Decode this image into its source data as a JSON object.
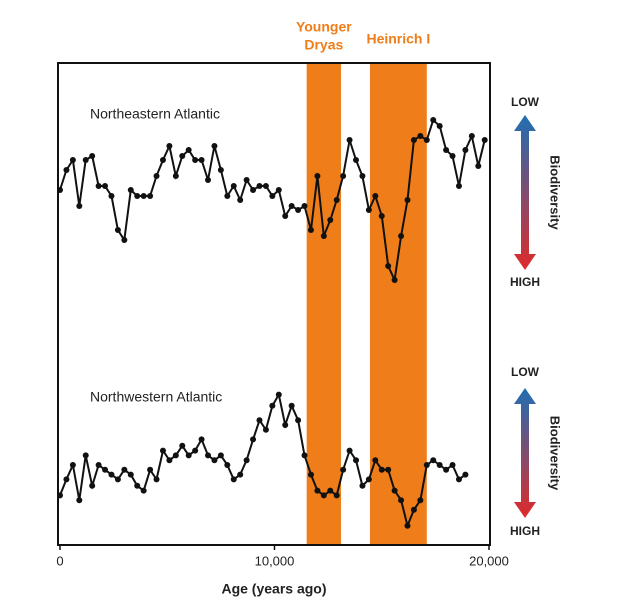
{
  "chart_data": {
    "type": "line",
    "xlabel": "Age (years ago)",
    "xlim": [
      0,
      20000
    ],
    "xticks": [
      0,
      {
        "value": 10000,
        "label": "10,000"
      },
      {
        "value": 20000,
        "label": "20,000"
      }
    ],
    "bands": [
      {
        "label_lines": [
          "Younger",
          "Dryas"
        ],
        "start": 11500,
        "end": 13100,
        "color": "#ef7d1a"
      },
      {
        "label_lines": [
          "Heinrich I"
        ],
        "start": 14450,
        "end": 17100,
        "color": "#ef7d1a"
      }
    ],
    "series": [
      {
        "name": "Northeastern Atlantic",
        "color": "#111111",
        "ylim": [
          0,
          100
        ],
        "indicator": {
          "top": "LOW",
          "bottom": "HIGH",
          "label": "Biodiversity"
        },
        "x": [
          0,
          300,
          600,
          900,
          1200,
          1500,
          1800,
          2100,
          2400,
          2700,
          3000,
          3300,
          3600,
          3900,
          4200,
          4500,
          4800,
          5100,
          5400,
          5700,
          6000,
          6300,
          6600,
          6900,
          7200,
          7500,
          7800,
          8100,
          8400,
          8700,
          9000,
          9300,
          9600,
          9900,
          10200,
          10500,
          10800,
          11100,
          11400,
          11700,
          12000,
          12300,
          12600,
          12900,
          13200,
          13500,
          13800,
          14100,
          14400,
          14700,
          15000,
          15300,
          15600,
          15900,
          16200,
          16500,
          16800,
          17100,
          17400,
          17700,
          18000,
          18300,
          18600,
          18900,
          19200,
          19500,
          19800
        ],
        "values": [
          55,
          65,
          70,
          47,
          70,
          72,
          57,
          57,
          52,
          35,
          30,
          55,
          52,
          52,
          52,
          62,
          70,
          77,
          62,
          72,
          75,
          70,
          70,
          60,
          77,
          65,
          52,
          57,
          50,
          60,
          55,
          57,
          57,
          52,
          55,
          42,
          47,
          45,
          47,
          35,
          62,
          32,
          40,
          50,
          62,
          80,
          70,
          62,
          45,
          52,
          42,
          17,
          10,
          32,
          50,
          80,
          82,
          80,
          90,
          87,
          75,
          72,
          57,
          75,
          82,
          67,
          80
        ]
      },
      {
        "name": "Northwestern Atlantic",
        "color": "#111111",
        "ylim": [
          0,
          100
        ],
        "indicator": {
          "top": "LOW",
          "bottom": "HIGH",
          "label": "Biodiversity"
        },
        "x": [
          0,
          300,
          600,
          900,
          1200,
          1500,
          1800,
          2100,
          2400,
          2700,
          3000,
          3300,
          3600,
          3900,
          4200,
          4500,
          4800,
          5100,
          5400,
          5700,
          6000,
          6300,
          6600,
          6900,
          7200,
          7500,
          7800,
          8100,
          8400,
          8700,
          9000,
          9300,
          9600,
          9900,
          10200,
          10500,
          10800,
          11100,
          11400,
          11700,
          12000,
          12300,
          12600,
          12900,
          13200,
          13500,
          13800,
          14100,
          14400,
          14700,
          15000,
          15300,
          15600,
          15900,
          16200,
          16500,
          16800,
          17100,
          17400,
          17700,
          18000,
          18300,
          18600,
          18900
        ],
        "values": [
          31,
          41,
          50,
          28,
          56,
          37,
          50,
          47,
          44,
          41,
          47,
          44,
          37,
          34,
          47,
          41,
          59,
          53,
          56,
          62,
          56,
          59,
          66,
          56,
          53,
          56,
          50,
          41,
          44,
          53,
          66,
          78,
          72,
          87,
          94,
          75,
          87,
          78,
          56,
          44,
          34,
          31,
          34,
          31,
          47,
          59,
          53,
          37,
          41,
          53,
          47,
          47,
          34,
          28,
          12,
          22,
          28,
          50,
          53,
          50,
          47,
          50,
          41,
          44
        ]
      }
    ]
  }
}
